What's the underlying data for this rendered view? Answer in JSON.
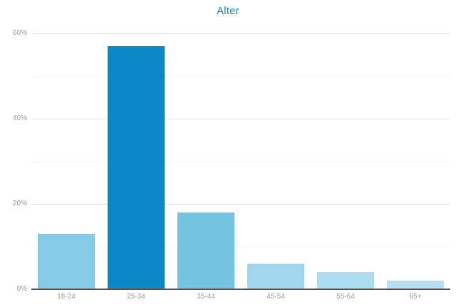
{
  "title": "Alter",
  "chart_data": {
    "type": "bar",
    "title": "Alter",
    "categories": [
      "18-24",
      "25-34",
      "35-44",
      "45-54",
      "55-64",
      "65+"
    ],
    "values": [
      13,
      57,
      18,
      6,
      4,
      2
    ],
    "unit": "%",
    "bar_colors": [
      "#85cbe8",
      "#0d88c6",
      "#74c5e4",
      "#a0d6ee",
      "#abdcf0",
      "#b4e0f2"
    ],
    "xlabel": "",
    "ylabel": "",
    "grid": true,
    "legend": false,
    "y_axis": {
      "max": 60,
      "minor_step": 10,
      "tick_values": [
        0,
        20,
        40,
        60
      ],
      "ticks": [
        "0%",
        "20%",
        "40%",
        "60%"
      ]
    }
  },
  "colors": {
    "title": "#1b87c5",
    "axis_label": "#9b9b9b",
    "axis_line": "#58595b",
    "grid_major": "#e3e3e3",
    "grid_minor": "#f4f4f4",
    "background": "#ffffff"
  }
}
